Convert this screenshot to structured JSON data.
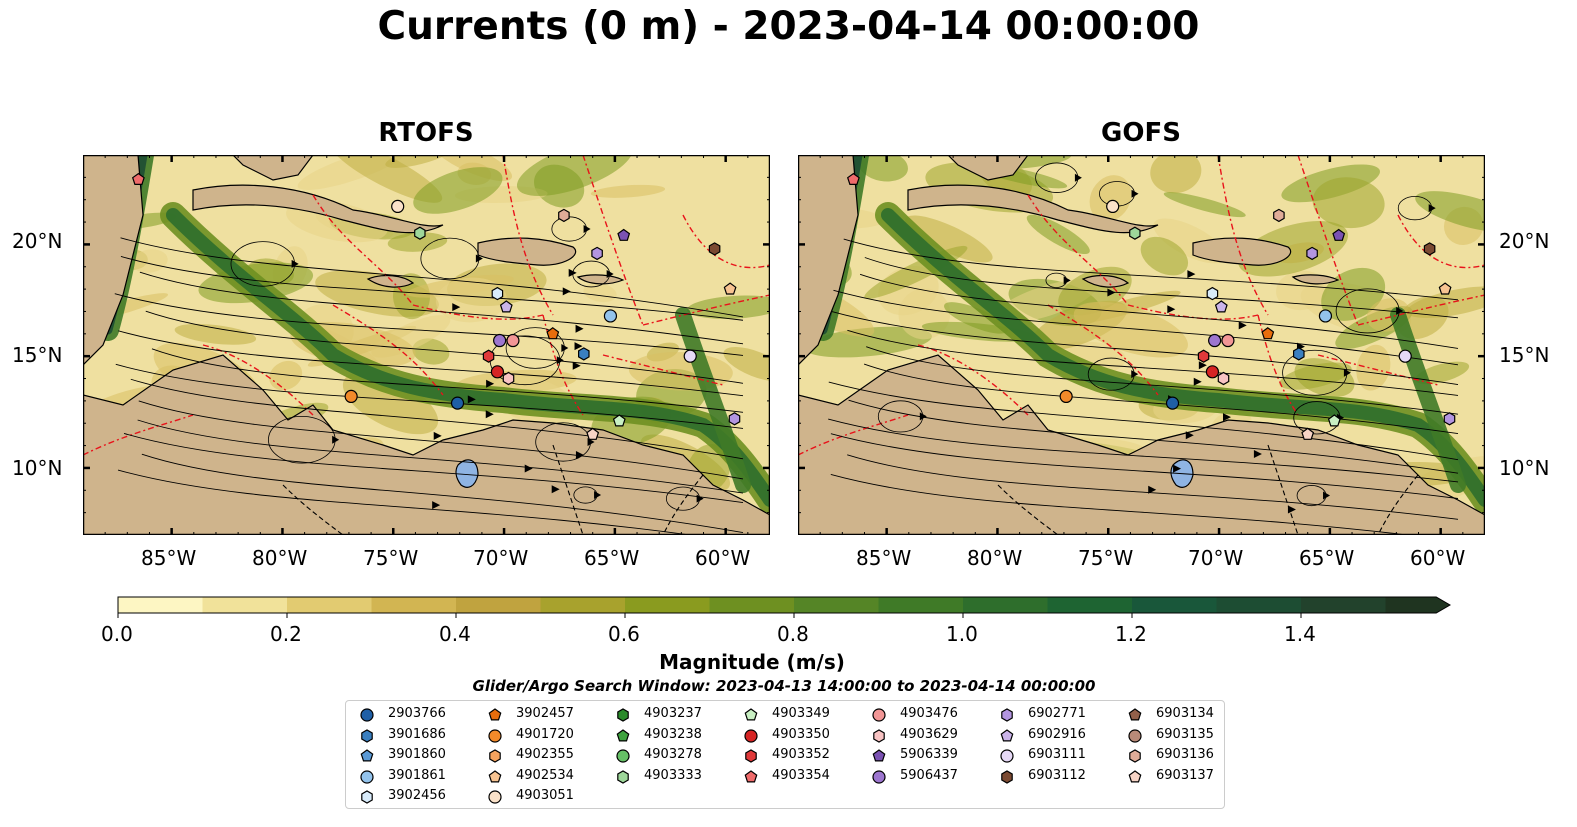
{
  "title": "Currents (0 m) - 2023-04-14 00:00:00",
  "panels": [
    {
      "title": "RTOFS"
    },
    {
      "title": "GOFS"
    }
  ],
  "axes": {
    "lat_labels": [
      "20°N",
      "15°N",
      "10°N"
    ],
    "lon_labels": [
      "85°W",
      "80°W",
      "75°W",
      "70°W",
      "65°W",
      "60°W"
    ]
  },
  "colorbar": {
    "label": "Magnitude (m/s)",
    "ticks": [
      "0.0",
      "0.2",
      "0.4",
      "0.6",
      "0.8",
      "1.0",
      "1.2",
      "1.4"
    ],
    "colors": [
      "#fdf6c3",
      "#f1e29a",
      "#e2cb71",
      "#d2b552",
      "#c0a33f",
      "#a8a22d",
      "#8a9b1f",
      "#6e9021",
      "#558526",
      "#3f7a27",
      "#2e6e2c",
      "#1e6432",
      "#19573a",
      "#1d4d33",
      "#22422c",
      "#1f3420"
    ]
  },
  "search_window": "Glider/Argo Search Window: 2023-04-13 14:00:00 to 2023-04-14 00:00:00",
  "legend": {
    "columns": [
      [
        {
          "id": "2903766",
          "marker": "circle",
          "color": "#1f5fa6"
        },
        {
          "id": "3901686",
          "marker": "hexagon",
          "color": "#3a7fc0"
        },
        {
          "id": "3901860",
          "marker": "pentagon",
          "color": "#5b9ad6"
        },
        {
          "id": "3901861",
          "marker": "circle",
          "color": "#93c3ec"
        },
        {
          "id": "3902456",
          "marker": "hexagon",
          "color": "#d8ebfa"
        }
      ],
      [
        {
          "id": "3902457",
          "marker": "pentagon",
          "color": "#e86d0d"
        },
        {
          "id": "4901720",
          "marker": "circle",
          "color": "#f28a2a"
        },
        {
          "id": "4902355",
          "marker": "hexagon",
          "color": "#f6a35e"
        },
        {
          "id": "4902534",
          "marker": "pentagon",
          "color": "#f8c492"
        },
        {
          "id": "4903051",
          "marker": "circle",
          "color": "#fbe2c9"
        }
      ],
      [
        {
          "id": "4903237",
          "marker": "hexagon",
          "color": "#2a8a2a"
        },
        {
          "id": "4903238",
          "marker": "pentagon",
          "color": "#3ea23e"
        },
        {
          "id": "4903278",
          "marker": "circle",
          "color": "#66c066"
        },
        {
          "id": "4903333",
          "marker": "hexagon",
          "color": "#9ed79a"
        }
      ],
      [
        {
          "id": "4903349",
          "marker": "pentagon",
          "color": "#c9f0c3"
        },
        {
          "id": "4903350",
          "marker": "circle",
          "color": "#d62424"
        },
        {
          "id": "4903352",
          "marker": "hexagon",
          "color": "#e0393a"
        },
        {
          "id": "4903354",
          "marker": "pentagon",
          "color": "#ef6b6b"
        }
      ],
      [
        {
          "id": "4903476",
          "marker": "circle",
          "color": "#f29696"
        },
        {
          "id": "4903629",
          "marker": "hexagon",
          "color": "#f8c3c3"
        },
        {
          "id": "5906339",
          "marker": "pentagon",
          "color": "#7b52b3"
        },
        {
          "id": "5906437",
          "marker": "circle",
          "color": "#9d76cf"
        }
      ],
      [
        {
          "id": "6902771",
          "marker": "hexagon",
          "color": "#b395e0"
        },
        {
          "id": "6902916",
          "marker": "pentagon",
          "color": "#cbb4ea"
        },
        {
          "id": "6903111",
          "marker": "circle",
          "color": "#e6d9f6"
        },
        {
          "id": "6903112",
          "marker": "hexagon",
          "color": "#7b4a32"
        }
      ],
      [
        {
          "id": "6903134",
          "marker": "pentagon",
          "color": "#93604a"
        },
        {
          "id": "6903135",
          "marker": "circle",
          "color": "#b98a78"
        },
        {
          "id": "6903136",
          "marker": "hexagon",
          "color": "#e0ac98"
        },
        {
          "id": "6903137",
          "marker": "pentagon",
          "color": "#f7d4c6"
        }
      ]
    ]
  },
  "chart_data": {
    "type": "map",
    "lon_range": [
      -89,
      -58
    ],
    "lat_range": [
      7,
      24
    ],
    "colorbar_range": [
      0.0,
      1.5
    ],
    "colorbar_extend": "max",
    "floats": [
      {
        "id": "2903766",
        "lon": -72.1,
        "lat": 12.9
      },
      {
        "id": "4901720",
        "lon": -76.9,
        "lat": 13.2
      },
      {
        "id": "4903350",
        "lon": -70.3,
        "lat": 14.3
      },
      {
        "id": "4903352",
        "lon": -70.7,
        "lat": 15.0
      },
      {
        "id": "4903629",
        "lon": -69.8,
        "lat": 14.0
      },
      {
        "id": "5906437",
        "lon": -70.2,
        "lat": 15.7
      },
      {
        "id": "4903476",
        "lon": -69.6,
        "lat": 15.7
      },
      {
        "id": "3902457",
        "lon": -67.8,
        "lat": 16.0
      },
      {
        "id": "3901686",
        "lon": -66.4,
        "lat": 15.1
      },
      {
        "id": "3901861",
        "lon": -65.2,
        "lat": 16.8
      },
      {
        "id": "3902456",
        "lon": -70.3,
        "lat": 17.8
      },
      {
        "id": "6902916",
        "lon": -69.9,
        "lat": 17.2
      },
      {
        "id": "4903051",
        "lon": -74.8,
        "lat": 21.7
      },
      {
        "id": "4903333",
        "lon": -73.8,
        "lat": 20.5
      },
      {
        "id": "6903136",
        "lon": -67.3,
        "lat": 21.3
      },
      {
        "id": "6902771",
        "lon": -65.8,
        "lat": 19.6
      },
      {
        "id": "5906339",
        "lon": -64.6,
        "lat": 20.4
      },
      {
        "id": "6903112",
        "lon": -60.5,
        "lat": 19.8
      },
      {
        "id": "4902534",
        "lon": -59.8,
        "lat": 18.0
      },
      {
        "id": "6903111",
        "lon": -61.6,
        "lat": 15.0
      },
      {
        "id": "6902771",
        "lon": -59.6,
        "lat": 12.2
      },
      {
        "id": "4903349",
        "lon": -64.8,
        "lat": 12.1
      },
      {
        "id": "6903137",
        "lon": -66.0,
        "lat": 11.5
      },
      {
        "id": "4903354",
        "lon": -86.5,
        "lat": 22.9
      }
    ]
  }
}
